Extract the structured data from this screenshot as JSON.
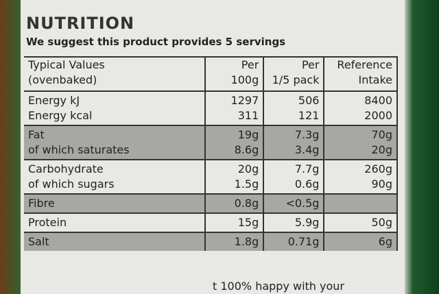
{
  "header": {
    "title": "NUTRITION",
    "subtitle": "We suggest this product provides 5 servings"
  },
  "table": {
    "columns": [
      [
        "Typical Values",
        "(ovenbaked)"
      ],
      [
        "Per",
        "100g"
      ],
      [
        "Per",
        "1/5 pack"
      ],
      [
        "Reference",
        "Intake"
      ]
    ],
    "groups": [
      {
        "shaded": false,
        "rows": [
          [
            "Energy kJ",
            "1297",
            "506",
            "8400"
          ],
          [
            "Energy kcal",
            "311",
            "121",
            "2000"
          ]
        ]
      },
      {
        "shaded": true,
        "rows": [
          [
            "Fat",
            "19g",
            "7.3g",
            "70g"
          ],
          [
            "of which saturates",
            "8.6g",
            "3.4g",
            "20g"
          ]
        ]
      },
      {
        "shaded": false,
        "rows": [
          [
            "Carbohydrate",
            "20g",
            "7.7g",
            "260g"
          ],
          [
            "of which sugars",
            "1.5g",
            "0.6g",
            "90g"
          ]
        ]
      },
      {
        "shaded": true,
        "rows": [
          [
            "Fibre",
            "0.8g",
            "<0.5g"
          ]
        ]
      },
      {
        "shaded": false,
        "rows": [
          [
            "Protein",
            "15g",
            "5.9g",
            "50g"
          ]
        ]
      },
      {
        "shaded": true,
        "rows": [
          [
            "Salt",
            "1.8g",
            "0.71g",
            "6g"
          ]
        ]
      }
    ]
  },
  "footer": {
    "text": "t 100% happy with your"
  }
}
